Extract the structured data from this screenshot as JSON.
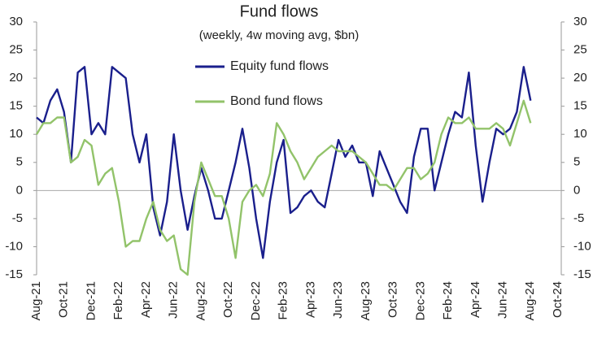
{
  "chart_data": {
    "type": "line",
    "title": "Fund flows",
    "subtitle": "(weekly, 4w moving avg, $bn)",
    "categories": [
      "Aug-21",
      null,
      null,
      null,
      "Oct-21",
      null,
      null,
      null,
      "Dec-21",
      null,
      null,
      null,
      "Feb-22",
      null,
      null,
      null,
      "Apr-22",
      null,
      null,
      null,
      "Jun-22",
      null,
      null,
      null,
      "Aug-22",
      null,
      null,
      null,
      "Oct-22",
      null,
      null,
      null,
      "Dec-22",
      null,
      null,
      null,
      "Feb-23",
      null,
      null,
      null,
      "Apr-23",
      null,
      null,
      null,
      "Jun-23",
      null,
      null,
      null,
      "Aug-23",
      null,
      null,
      null,
      "Oct-23",
      null,
      null,
      null,
      "Dec-23",
      null,
      null,
      null,
      "Feb-24",
      null,
      null,
      null,
      "Apr-24",
      null,
      null,
      null,
      "Jun-24",
      null,
      null,
      null,
      "Aug-24",
      null,
      null,
      null,
      "Oct-24"
    ],
    "series": [
      {
        "name": "Equity fund flows",
        "color": "#1a1f8c",
        "values": [
          13,
          12,
          16,
          18,
          14,
          5,
          21,
          22,
          10,
          12,
          10,
          22,
          21,
          20,
          10,
          5,
          10,
          -3,
          -8,
          -2,
          10,
          0,
          -7,
          -1,
          4,
          0,
          -5,
          -5,
          0,
          5,
          11,
          4,
          -5,
          -12,
          -2,
          5,
          9,
          -4,
          -3,
          -1,
          0,
          -2,
          -3,
          3,
          9,
          6,
          8,
          5,
          5,
          -1,
          7,
          4,
          1,
          -2,
          -4,
          6,
          11,
          11,
          0,
          5,
          10,
          14,
          13,
          21,
          8,
          -2,
          5,
          11,
          10,
          11,
          14,
          22,
          16,
          null,
          null,
          null,
          null
        ]
      },
      {
        "name": "Bond fund flows",
        "color": "#92c36a",
        "values": [
          10,
          12,
          12,
          13,
          13,
          5,
          6,
          9,
          8,
          1,
          3,
          4,
          -2,
          -10,
          -9,
          -9,
          -5,
          -2,
          -7,
          -9,
          -8,
          -14,
          -15,
          -2,
          5,
          2,
          -1,
          -1,
          -5,
          -12,
          -2,
          0,
          1,
          -1,
          3,
          12,
          10,
          7,
          5,
          2,
          4,
          6,
          7,
          8,
          7,
          7,
          7,
          6,
          5,
          3,
          1,
          1,
          0,
          2,
          4,
          4,
          2,
          3,
          5,
          10,
          13,
          12,
          12,
          13,
          11,
          11,
          11,
          12,
          11,
          8,
          12,
          16,
          12,
          null,
          null,
          null,
          null
        ]
      }
    ],
    "ylim": [
      -15,
      30
    ],
    "yticks": [
      -15,
      -10,
      -5,
      0,
      5,
      10,
      15,
      20,
      25,
      30
    ],
    "y2lim": [
      -15,
      30
    ],
    "y2ticks": [
      -15,
      -10,
      -5,
      0,
      5,
      10,
      15,
      20,
      25,
      30
    ],
    "legend": "top"
  }
}
